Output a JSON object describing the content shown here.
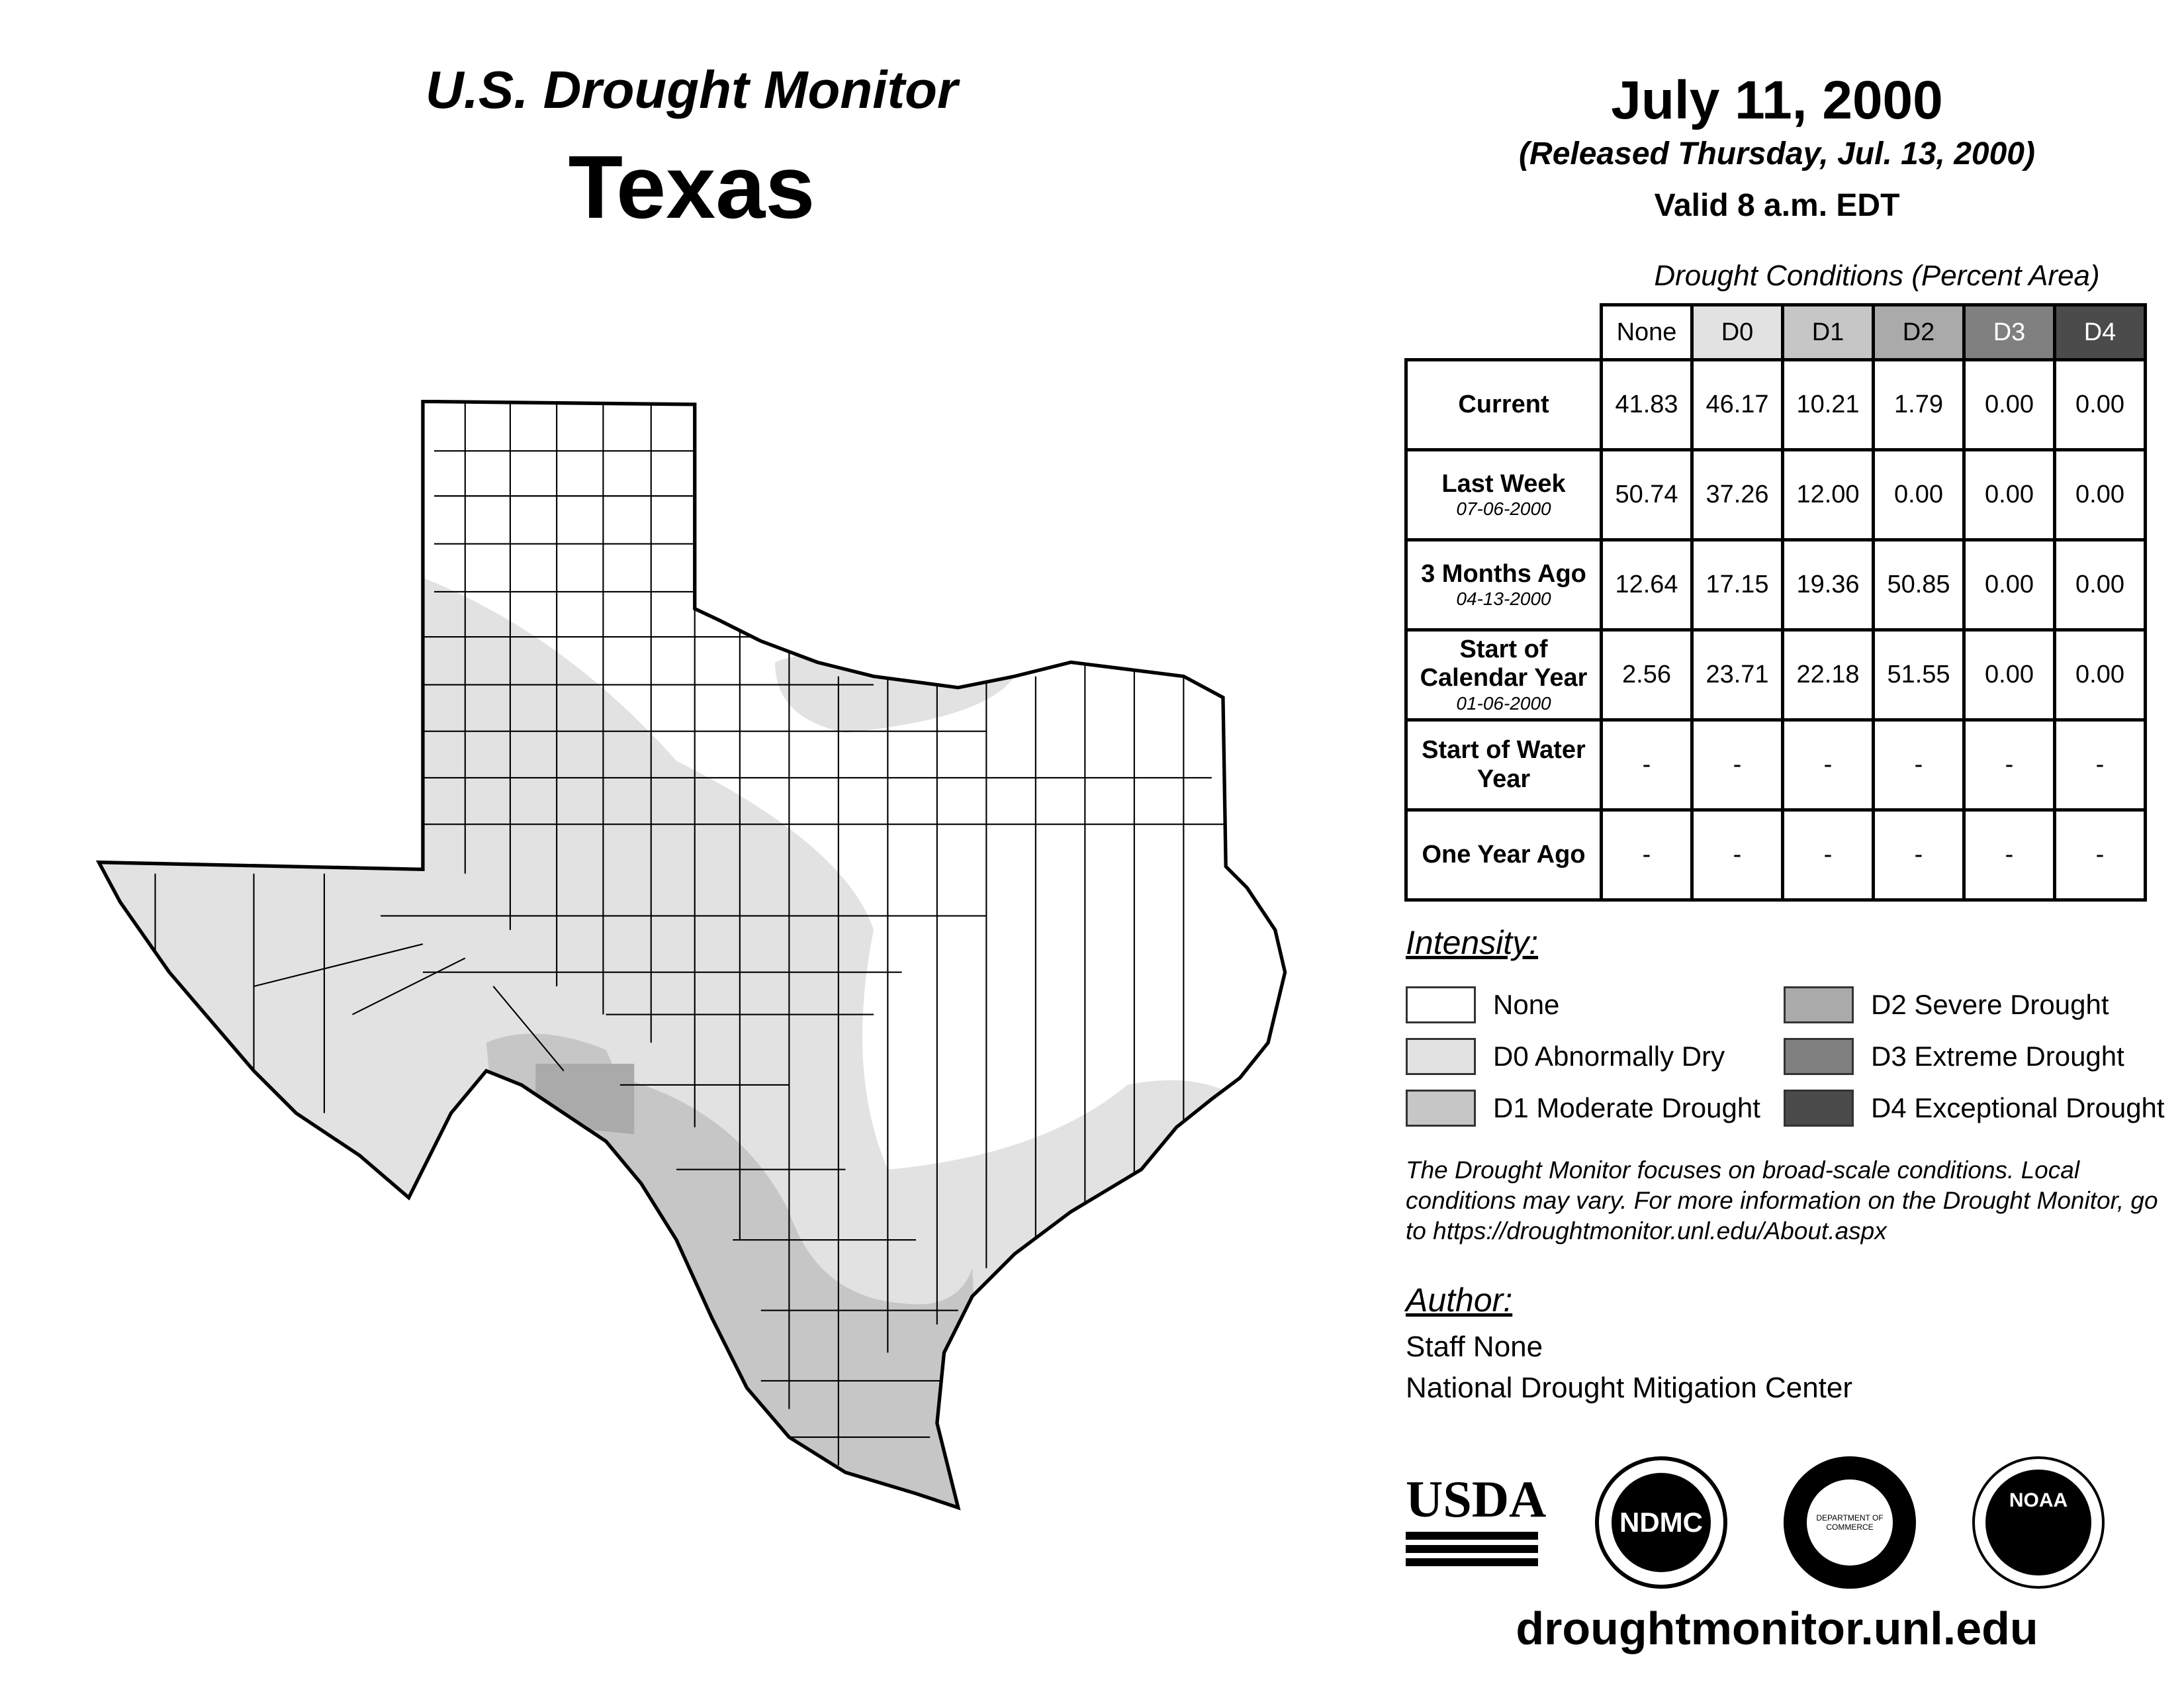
{
  "header": {
    "title": "U.S. Drought Monitor",
    "region": "Texas",
    "date": "July 11, 2000",
    "released": "(Released Thursday, Jul. 13, 2000)",
    "valid": "Valid 8 a.m. EDT"
  },
  "table": {
    "caption": "Drought Conditions (Percent Area)",
    "columns": [
      "None",
      "D0",
      "D1",
      "D2",
      "D3",
      "D4"
    ],
    "rows": [
      {
        "label": "Current",
        "sub": "",
        "values": [
          "41.83",
          "46.17",
          "10.21",
          "1.79",
          "0.00",
          "0.00"
        ]
      },
      {
        "label": "Last Week",
        "sub": "07-06-2000",
        "values": [
          "50.74",
          "37.26",
          "12.00",
          "0.00",
          "0.00",
          "0.00"
        ]
      },
      {
        "label": "3 Months Ago",
        "sub": "04-13-2000",
        "values": [
          "12.64",
          "17.15",
          "19.36",
          "50.85",
          "0.00",
          "0.00"
        ]
      },
      {
        "label": "Start of Calendar Year",
        "sub": "01-06-2000",
        "values": [
          "2.56",
          "23.71",
          "22.18",
          "51.55",
          "0.00",
          "0.00"
        ]
      },
      {
        "label": "Start of Water Year",
        "sub": "",
        "values": [
          "-",
          "-",
          "-",
          "-",
          "-",
          "-"
        ]
      },
      {
        "label": "One Year Ago",
        "sub": "",
        "values": [
          "-",
          "-",
          "-",
          "-",
          "-",
          "-"
        ]
      }
    ]
  },
  "legend": {
    "title": "Intensity:",
    "items": [
      {
        "label": "None",
        "color": "#ffffff"
      },
      {
        "label": "D0 Abnormally Dry",
        "color": "#e2e2e2"
      },
      {
        "label": "D1 Moderate Drought",
        "color": "#c6c6c6"
      },
      {
        "label": "D2 Severe Drought",
        "color": "#aaaaaa"
      },
      {
        "label": "D3 Extreme Drought",
        "color": "#808080"
      },
      {
        "label": "D4 Exceptional Drought",
        "color": "#4b4b4b"
      }
    ]
  },
  "note": "The Drought Monitor focuses on broad-scale conditions. Local conditions may vary. For more information on the Drought Monitor, go to https://droughtmonitor.unl.edu/About.aspx",
  "author": {
    "title": "Author:",
    "name": "Staff None",
    "org": "National Drought Mitigation Center"
  },
  "logos": {
    "usda": "USDA",
    "ndmc": "NDMC",
    "noaa": "NOAA",
    "doc": "DEPARTMENT OF COMMERCE"
  },
  "footer": {
    "url": "droughtmonitor.unl.edu"
  }
}
